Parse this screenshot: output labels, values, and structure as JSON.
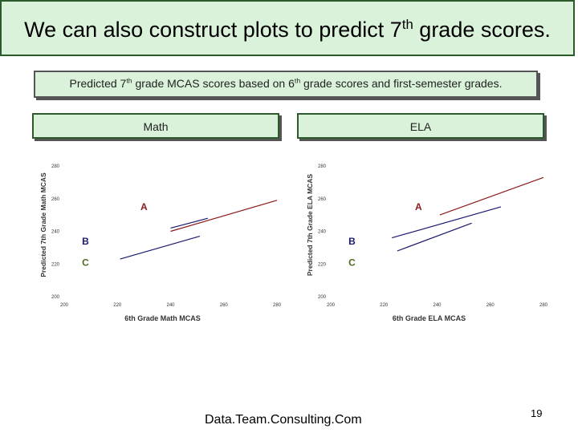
{
  "slide": {
    "title_pre": "We can also construct plots to predict 7",
    "title_sup": "th",
    "title_post": " grade scores.",
    "subtitle_pre": "Predicted 7",
    "subtitle_sup": "th",
    "subtitle_mid": " grade MCAS scores based on 6",
    "subtitle_sup2": "th",
    "subtitle_post": " grade scores and first-semester grades.",
    "footer": "Data.Team.Consulting.Com",
    "page_number": "19"
  },
  "panels": {
    "math_label": "Math",
    "ela_label": "ELA"
  },
  "colors": {
    "panel_fill": "#d9f2d9",
    "line_A": "#8b1a1a",
    "line_B": "#1a1a6e",
    "line_C": "#1a1a6e",
    "label_A": "#8b1a1a",
    "label_B": "#1a1a6e",
    "label_C": "#4f6b1a"
  },
  "chart_data": [
    {
      "type": "line",
      "title": "",
      "xlabel": "6th Grade Math MCAS",
      "ylabel": "Predicted 7th Grade Math MCAS",
      "xlim": [
        200,
        280
      ],
      "ylim": [
        200,
        280
      ],
      "xticks": [
        200,
        220,
        240,
        260,
        280
      ],
      "yticks": [
        200,
        220,
        240,
        260,
        280
      ],
      "grid": false,
      "series": [
        {
          "name": "A",
          "x": [
            240,
            280
          ],
          "y": [
            240,
            259
          ]
        },
        {
          "name": "B",
          "x": [
            240,
            254
          ],
          "y": [
            242,
            248
          ]
        },
        {
          "name": "C",
          "x": [
            221,
            251
          ],
          "y": [
            223,
            237
          ]
        }
      ],
      "annotations": [
        {
          "text": "A",
          "x": 230,
          "y": 253
        },
        {
          "text": "B",
          "x": 208,
          "y": 232
        },
        {
          "text": "C",
          "x": 208,
          "y": 219
        }
      ]
    },
    {
      "type": "line",
      "title": "",
      "xlabel": "6th Grade ELA MCAS",
      "ylabel": "Predicted 7th Grade ELA MCAS",
      "xlim": [
        200,
        280
      ],
      "ylim": [
        200,
        280
      ],
      "xticks": [
        200,
        220,
        240,
        260,
        280
      ],
      "yticks": [
        200,
        220,
        240,
        260,
        280
      ],
      "grid": false,
      "series": [
        {
          "name": "A",
          "x": [
            241,
            280
          ],
          "y": [
            250,
            273
          ]
        },
        {
          "name": "B",
          "x": [
            223,
            264
          ],
          "y": [
            236,
            255
          ]
        },
        {
          "name": "C",
          "x": [
            225,
            253
          ],
          "y": [
            228,
            245
          ]
        }
      ],
      "annotations": [
        {
          "text": "A",
          "x": 233,
          "y": 253
        },
        {
          "text": "B",
          "x": 208,
          "y": 232
        },
        {
          "text": "C",
          "x": 208,
          "y": 219
        }
      ]
    }
  ]
}
